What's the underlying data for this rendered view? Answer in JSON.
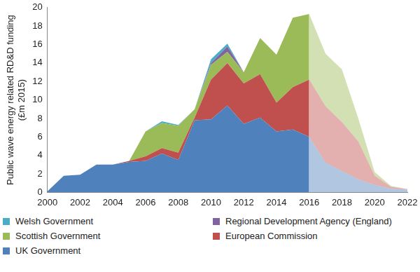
{
  "chart_data": {
    "type": "area",
    "stacked": true,
    "y_label": [
      "Public wave energy related RD&D funding",
      "(£m 2015)"
    ],
    "x": [
      2000,
      2001,
      2002,
      2003,
      2004,
      2005,
      2006,
      2007,
      2008,
      2009,
      2010,
      2011,
      2012,
      2013,
      2014,
      2015,
      2016,
      2017,
      2018,
      2019,
      2020,
      2021,
      2022
    ],
    "xlim": [
      2000,
      2022
    ],
    "xticks": [
      2000,
      2002,
      2004,
      2006,
      2008,
      2010,
      2012,
      2014,
      2016,
      2018,
      2020,
      2022
    ],
    "ylim": [
      0,
      20
    ],
    "yticks": [
      0,
      2,
      4,
      6,
      8,
      10,
      12,
      14,
      16,
      18,
      20
    ],
    "grid": false,
    "legend": "bottom",
    "series": [
      {
        "name": "UK Government",
        "color": "#4f81bd",
        "values": [
          0.1,
          1.8,
          1.9,
          3.0,
          3.0,
          3.3,
          3.4,
          4.2,
          3.5,
          7.8,
          7.9,
          9.4,
          7.4,
          8.1,
          6.6,
          6.8,
          6.0,
          3.2,
          2.3,
          1.4,
          0.8,
          0.4,
          0.3
        ]
      },
      {
        "name": "European Commission",
        "color": "#c0504d",
        "values": [
          0,
          0,
          0,
          0,
          0,
          0.1,
          0.5,
          0.6,
          0.8,
          0.3,
          4.3,
          4.6,
          4.4,
          4.7,
          3.1,
          4.6,
          6.2,
          6.1,
          5.3,
          4.1,
          1.0,
          0.2,
          0.05
        ]
      },
      {
        "name": "Scottish Government",
        "color": "#9bbb59",
        "values": [
          0,
          0,
          0,
          0,
          0,
          0,
          2.7,
          2.7,
          2.9,
          0.9,
          1.6,
          1.2,
          1.2,
          3.9,
          5.2,
          7.5,
          7.1,
          5.7,
          5.7,
          2.5,
          0.4,
          0.1,
          0
        ]
      },
      {
        "name": "Regional Development Agency (England)",
        "color": "#8064a2",
        "values": [
          0,
          0,
          0,
          0,
          0,
          0,
          0,
          0,
          0,
          0,
          0.2,
          0.6,
          0,
          0,
          0,
          0,
          0,
          0,
          0,
          0,
          0,
          0,
          0
        ]
      },
      {
        "name": "Welsh Government",
        "color": "#4bacc6",
        "values": [
          0,
          0,
          0,
          0,
          0,
          0,
          0,
          0.2,
          0.1,
          0,
          0.4,
          0.3,
          0,
          0,
          0,
          0,
          0,
          0,
          0,
          0,
          0,
          0,
          0
        ]
      }
    ]
  }
}
